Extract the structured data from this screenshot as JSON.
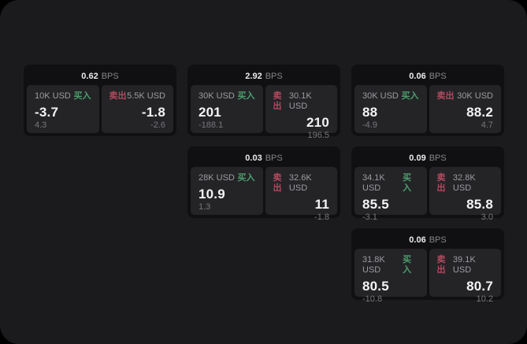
{
  "labels": {
    "bps": "BPS",
    "buy": "买入",
    "sell": "卖出"
  },
  "colors": {
    "buy": "#4d9e6d",
    "sell": "#b5495f",
    "window_background": "#1b1b1d",
    "card_background": "#101012",
    "panel_background": "#242427"
  },
  "cards": [
    {
      "bps": "0.62",
      "buy": {
        "amount": "10K USD",
        "price": "-3.7",
        "delta": "4.3"
      },
      "sell": {
        "amount": "5.5K USD",
        "price": "-1.8",
        "delta": "-2.6"
      }
    },
    {
      "bps": "2.92",
      "buy": {
        "amount": "30K USD",
        "price": "201",
        "delta": "-188.1"
      },
      "sell": {
        "amount": "30.1K USD",
        "price": "210",
        "delta": "196.5"
      }
    },
    {
      "bps": "0.06",
      "buy": {
        "amount": "30K USD",
        "price": "88",
        "delta": "-4.9"
      },
      "sell": {
        "amount": "30K USD",
        "price": "88.2",
        "delta": "4.7"
      }
    },
    {
      "bps": "0.03",
      "buy": {
        "amount": "28K USD",
        "price": "10.9",
        "delta": "1.3"
      },
      "sell": {
        "amount": "32.6K USD",
        "price": "11",
        "delta": "-1.8"
      }
    },
    {
      "bps": "0.09",
      "buy": {
        "amount": "34.1K USD",
        "price": "85.5",
        "delta": "-3.1"
      },
      "sell": {
        "amount": "32.8K USD",
        "price": "85.8",
        "delta": "3.0"
      }
    },
    {
      "bps": "0.06",
      "buy": {
        "amount": "31.8K USD",
        "price": "80.5",
        "delta": "-10.8"
      },
      "sell": {
        "amount": "39.1K USD",
        "price": "80.7",
        "delta": "10.2"
      }
    }
  ]
}
